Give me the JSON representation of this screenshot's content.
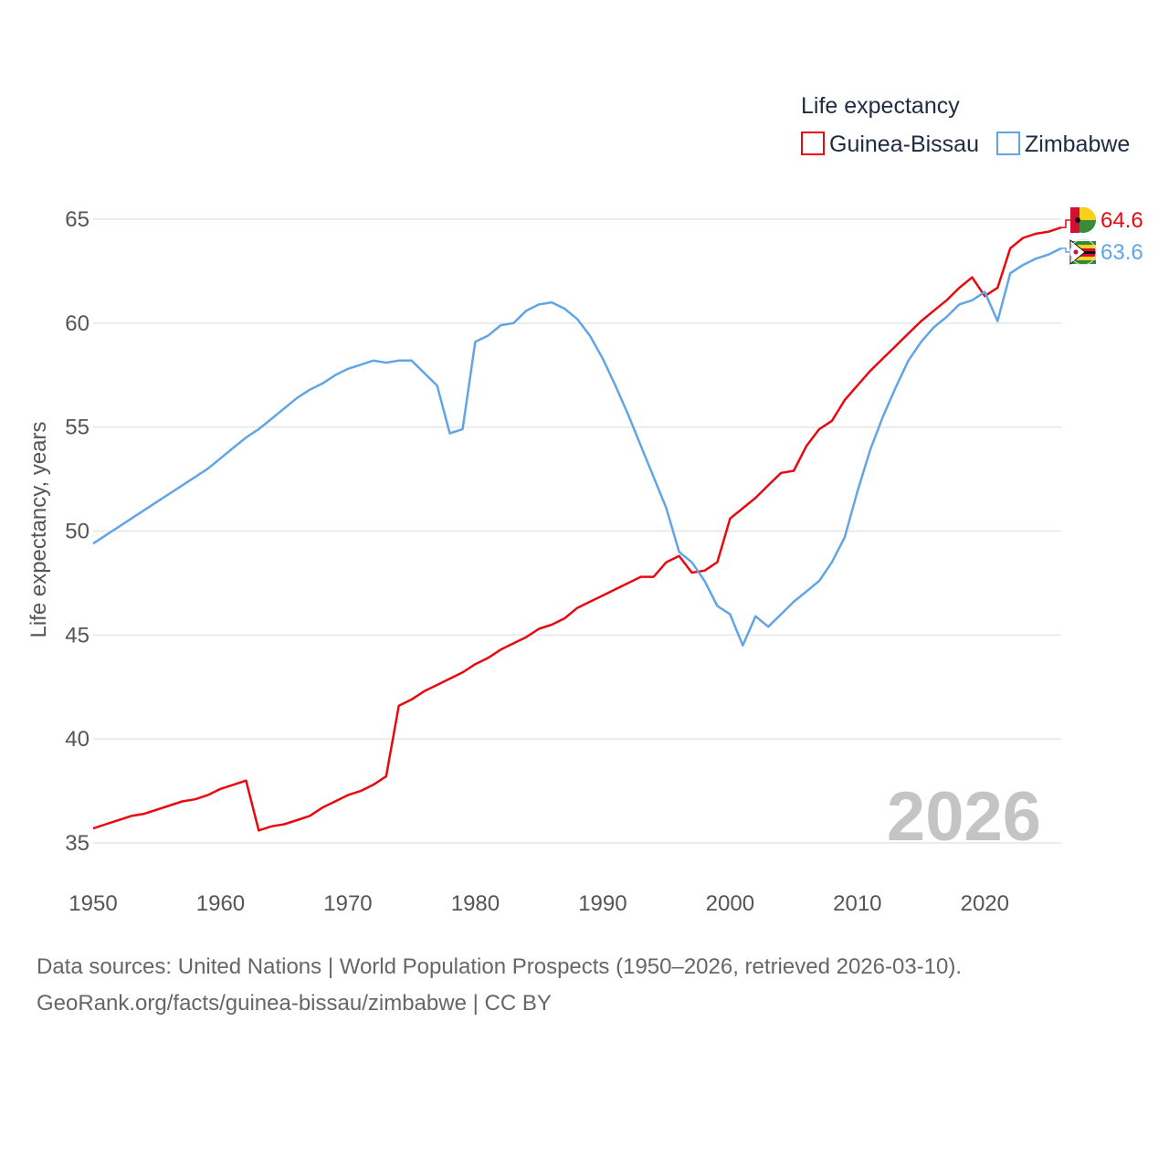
{
  "chart_data": {
    "type": "line",
    "ylabel": "Life expectancy, years",
    "xlim": [
      1950,
      2026
    ],
    "ylim": [
      35,
      65
    ],
    "x_ticks": [
      1950,
      1960,
      1970,
      1980,
      1990,
      2000,
      2010,
      2020
    ],
    "y_ticks": [
      35,
      40,
      45,
      50,
      55,
      60,
      65
    ],
    "grid": true,
    "legend_title": "Life expectancy",
    "legend_position": "top-right",
    "year_label": "2026",
    "x": [
      1950,
      1951,
      1952,
      1953,
      1954,
      1955,
      1956,
      1957,
      1958,
      1959,
      1960,
      1961,
      1962,
      1963,
      1964,
      1965,
      1966,
      1967,
      1968,
      1969,
      1970,
      1971,
      1972,
      1973,
      1974,
      1975,
      1976,
      1977,
      1978,
      1979,
      1980,
      1981,
      1982,
      1983,
      1984,
      1985,
      1986,
      1987,
      1988,
      1989,
      1990,
      1991,
      1992,
      1993,
      1994,
      1995,
      1996,
      1997,
      1998,
      1999,
      2000,
      2001,
      2002,
      2003,
      2004,
      2005,
      2006,
      2007,
      2008,
      2009,
      2010,
      2011,
      2012,
      2013,
      2014,
      2015,
      2016,
      2017,
      2018,
      2019,
      2020,
      2021,
      2022,
      2023,
      2024,
      2025,
      2026
    ],
    "series": [
      {
        "name": "Guinea-Bissau",
        "color": "#e8090f",
        "end_label": "64.6",
        "values": [
          35.7,
          35.9,
          36.1,
          36.3,
          36.4,
          36.6,
          36.8,
          37.0,
          37.1,
          37.3,
          37.6,
          37.8,
          38.0,
          35.6,
          35.8,
          35.9,
          36.1,
          36.3,
          36.7,
          37.0,
          37.3,
          37.5,
          37.8,
          38.2,
          41.6,
          41.9,
          42.3,
          42.6,
          42.9,
          43.2,
          43.6,
          43.9,
          44.3,
          44.6,
          44.9,
          45.3,
          45.5,
          45.8,
          46.3,
          46.6,
          46.9,
          47.2,
          47.5,
          47.8,
          47.8,
          48.5,
          48.8,
          48.0,
          48.1,
          48.5,
          50.6,
          51.1,
          51.6,
          52.2,
          52.8,
          52.9,
          54.1,
          54.9,
          55.3,
          56.3,
          57.0,
          57.7,
          58.3,
          58.9,
          59.5,
          60.1,
          60.6,
          61.1,
          61.7,
          62.2,
          61.3,
          61.7,
          63.6,
          64.1,
          64.3,
          64.4,
          64.6
        ]
      },
      {
        "name": "Zimbabwe",
        "color": "#61a5e6",
        "end_label": "63.6",
        "values": [
          49.4,
          49.8,
          50.2,
          50.6,
          51.0,
          51.4,
          51.8,
          52.2,
          52.6,
          53.0,
          53.5,
          54.0,
          54.5,
          54.9,
          55.4,
          55.9,
          56.4,
          56.8,
          57.1,
          57.5,
          57.8,
          58.0,
          58.2,
          58.1,
          58.2,
          58.2,
          57.6,
          57.0,
          54.7,
          54.9,
          59.1,
          59.4,
          59.9,
          60.0,
          60.6,
          60.9,
          61.0,
          60.7,
          60.2,
          59.4,
          58.3,
          57.0,
          55.6,
          54.1,
          52.6,
          51.1,
          49.0,
          48.5,
          47.6,
          46.4,
          46.0,
          44.5,
          45.9,
          45.4,
          46.0,
          46.6,
          47.1,
          47.6,
          48.5,
          49.7,
          51.9,
          53.9,
          55.5,
          56.9,
          58.2,
          59.1,
          59.8,
          60.3,
          60.9,
          61.1,
          61.5,
          60.1,
          62.4,
          62.8,
          63.1,
          63.3,
          63.6
        ]
      }
    ]
  },
  "footer": {
    "sources_line": "Data sources: United Nations | World Population Prospects (1950–2026, retrieved 2026-03-10).",
    "attribution_line": "GeoRank.org/facts/guinea-bissau/zimbabwe | CC BY"
  }
}
